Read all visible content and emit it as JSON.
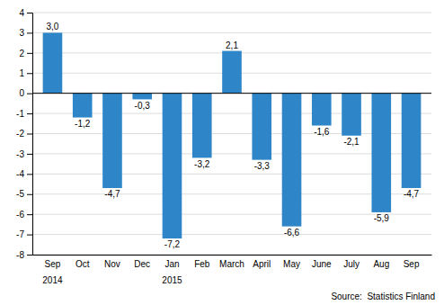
{
  "chart_data": {
    "type": "bar",
    "categories": [
      "Sep",
      "Oct",
      "Nov",
      "Dec",
      "Jan",
      "Feb",
      "March",
      "April",
      "May",
      "June",
      "July",
      "Aug",
      "Sep"
    ],
    "values": [
      3.0,
      -1.2,
      -4.7,
      -0.3,
      -7.2,
      -3.2,
      2.1,
      -3.3,
      -6.6,
      -1.6,
      -2.1,
      -5.9,
      -4.7
    ],
    "value_labels": [
      "3,0",
      "-1,2",
      "-4,7",
      "-0,3",
      "-7,2",
      "-3,2",
      "2,1",
      "-3,3",
      "-6,6",
      "-1,6",
      "-2,1",
      "-5,9",
      "-4,7"
    ],
    "data_labels": true,
    "color": "#2e86c8",
    "ylim": [
      -8,
      4
    ],
    "yticks": [
      -8,
      -7,
      -6,
      -5,
      -4,
      -3,
      -2,
      -1,
      0,
      1,
      2,
      3,
      4
    ],
    "grid": true,
    "annotations": [
      {
        "text": "2014",
        "x": 0
      },
      {
        "text": "2015",
        "x": 4
      },
      {
        "text": "Source:  Statistics Finland"
      }
    ]
  }
}
